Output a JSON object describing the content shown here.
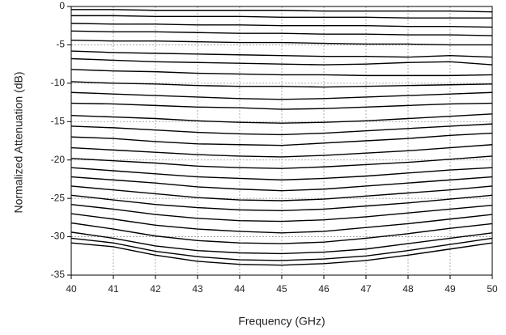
{
  "chart_data": {
    "type": "line",
    "x_label": "Frequency (GHz)",
    "y_label": "Normalized Attenuation (dB)",
    "x": [
      40,
      41,
      42,
      43,
      44,
      45,
      46,
      47,
      48,
      49,
      50
    ],
    "xlim": [
      40,
      50
    ],
    "xticks": [
      40,
      41,
      42,
      43,
      44,
      45,
      46,
      47,
      48,
      49,
      50
    ],
    "ylim": [
      -35,
      0
    ],
    "yticks": [
      -35,
      -30,
      -25,
      -20,
      -15,
      -10,
      -5,
      0
    ],
    "grid": true,
    "series": [
      {
        "color": "#000000",
        "values": [
          -0.4,
          -0.4,
          -0.5,
          -0.5,
          -0.5,
          -0.5,
          -0.6,
          -0.6,
          -0.6,
          -0.6,
          -0.7
        ]
      },
      {
        "color": "#000000",
        "values": [
          -1.2,
          -1.2,
          -1.3,
          -1.3,
          -1.3,
          -1.4,
          -1.4,
          -1.4,
          -1.5,
          -1.5,
          -1.5
        ]
      },
      {
        "color": "#000000",
        "values": [
          -2.2,
          -2.3,
          -2.3,
          -2.4,
          -2.4,
          -2.5,
          -2.5,
          -2.5,
          -2.6,
          -2.6,
          -2.7
        ]
      },
      {
        "color": "#000000",
        "values": [
          -3.2,
          -3.3,
          -3.3,
          -3.4,
          -3.5,
          -3.5,
          -3.6,
          -3.6,
          -3.7,
          -3.7,
          -3.8
        ]
      },
      {
        "color": "#000000",
        "values": [
          -4.4,
          -4.5,
          -4.5,
          -4.6,
          -4.7,
          -4.7,
          -4.8,
          -4.9,
          -4.9,
          -5.0,
          -5.0
        ]
      },
      {
        "color": "#000000",
        "values": [
          -5.8,
          -6.0,
          -6.1,
          -6.2,
          -6.3,
          -6.4,
          -6.5,
          -6.5,
          -6.6,
          -6.4,
          -6.6
        ]
      },
      {
        "color": "#000000",
        "values": [
          -6.8,
          -7.0,
          -7.2,
          -7.3,
          -7.4,
          -7.5,
          -7.6,
          -7.5,
          -7.3,
          -7.2,
          -7.6
        ]
      },
      {
        "color": "#000000",
        "values": [
          -8.2,
          -8.4,
          -8.5,
          -8.7,
          -8.8,
          -8.9,
          -8.9,
          -9.0,
          -9.0,
          -9.0,
          -8.9
        ]
      },
      {
        "color": "#000000",
        "values": [
          -9.8,
          -10.0,
          -10.1,
          -10.3,
          -10.4,
          -10.4,
          -10.5,
          -10.4,
          -10.3,
          -10.2,
          -10.1
        ]
      },
      {
        "color": "#000000",
        "values": [
          -11.2,
          -11.4,
          -11.6,
          -11.8,
          -12.0,
          -12.1,
          -12.0,
          -11.8,
          -11.6,
          -11.4,
          -11.2
        ]
      },
      {
        "color": "#000000",
        "values": [
          -12.6,
          -12.7,
          -12.9,
          -13.1,
          -13.2,
          -13.4,
          -13.3,
          -13.1,
          -12.9,
          -12.7,
          -12.6
        ]
      },
      {
        "color": "#000000",
        "values": [
          -14.2,
          -14.4,
          -14.6,
          -14.9,
          -15.1,
          -15.2,
          -15.1,
          -14.9,
          -14.6,
          -14.3,
          -14.0
        ]
      },
      {
        "color": "#000000",
        "values": [
          -15.6,
          -15.8,
          -16.1,
          -16.4,
          -16.6,
          -16.7,
          -16.5,
          -16.2,
          -15.9,
          -15.6,
          -15.3
        ]
      },
      {
        "color": "#000000",
        "values": [
          -17.0,
          -17.2,
          -17.6,
          -17.9,
          -18.0,
          -18.1,
          -17.8,
          -17.5,
          -17.2,
          -16.8,
          -16.5
        ]
      },
      {
        "color": "#000000",
        "values": [
          -18.4,
          -18.7,
          -19.0,
          -19.3,
          -19.5,
          -19.6,
          -19.4,
          -19.1,
          -18.8,
          -18.4,
          -18.0
        ]
      },
      {
        "color": "#000000",
        "values": [
          -19.8,
          -20.1,
          -20.4,
          -20.8,
          -21.0,
          -21.1,
          -20.9,
          -20.6,
          -20.3,
          -19.9,
          -19.5
        ]
      },
      {
        "color": "#000000",
        "values": [
          -21.0,
          -21.4,
          -21.8,
          -22.2,
          -22.4,
          -22.6,
          -22.4,
          -22.1,
          -21.7,
          -21.3,
          -21.0
        ]
      },
      {
        "color": "#000000",
        "values": [
          -22.2,
          -22.6,
          -23.0,
          -23.5,
          -23.8,
          -24.0,
          -23.8,
          -23.4,
          -23.0,
          -22.6,
          -22.2
        ]
      },
      {
        "color": "#000000",
        "values": [
          -23.4,
          -23.9,
          -24.4,
          -24.9,
          -25.2,
          -25.3,
          -25.1,
          -24.7,
          -24.3,
          -23.9,
          -23.4
        ]
      },
      {
        "color": "#000000",
        "values": [
          -24.6,
          -25.2,
          -25.8,
          -26.2,
          -26.5,
          -26.6,
          -26.4,
          -26.0,
          -25.6,
          -25.1,
          -24.6
        ]
      },
      {
        "color": "#000000",
        "values": [
          -25.8,
          -26.4,
          -27.1,
          -27.6,
          -27.9,
          -28.0,
          -27.8,
          -27.4,
          -26.9,
          -26.4,
          -25.9
        ]
      },
      {
        "color": "#000000",
        "values": [
          -27.0,
          -27.7,
          -28.5,
          -29.0,
          -29.3,
          -29.5,
          -29.3,
          -28.8,
          -28.3,
          -27.7,
          -27.1
        ]
      },
      {
        "color": "#000000",
        "values": [
          -28.2,
          -29.0,
          -29.9,
          -30.5,
          -30.8,
          -30.9,
          -30.7,
          -30.2,
          -29.6,
          -28.9,
          -28.3
        ]
      },
      {
        "color": "#000000",
        "values": [
          -29.4,
          -30.2,
          -31.2,
          -31.8,
          -32.1,
          -32.2,
          -32.0,
          -31.6,
          -30.9,
          -30.2,
          -29.5
        ]
      },
      {
        "color": "#000000",
        "values": [
          -30.2,
          -30.8,
          -31.9,
          -32.6,
          -33.0,
          -33.1,
          -32.9,
          -32.5,
          -31.8,
          -31.0,
          -30.2
        ]
      },
      {
        "color": "#000000",
        "values": [
          -30.8,
          -31.3,
          -32.4,
          -33.2,
          -33.6,
          -33.7,
          -33.5,
          -33.1,
          -32.4,
          -31.6,
          -30.8
        ]
      }
    ]
  }
}
